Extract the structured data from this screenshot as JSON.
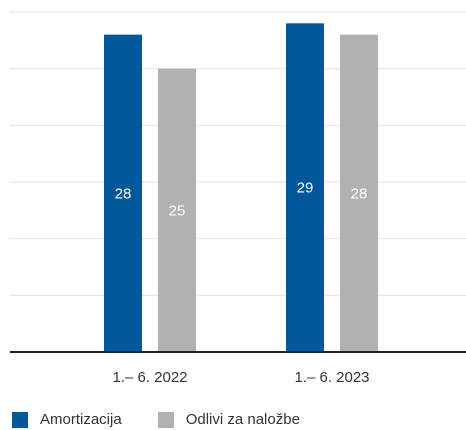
{
  "chart_data": {
    "type": "bar",
    "categories": [
      "1.– 6. 2022",
      "1.– 6. 2023"
    ],
    "series": [
      {
        "name": "Amortizacija",
        "values": [
          28,
          29
        ],
        "color": "#00579a"
      },
      {
        "name": "Odlivi za naložbe",
        "values": [
          25,
          28
        ],
        "color": "#b1b1b1"
      }
    ],
    "ylim": [
      0,
      30
    ],
    "grid": true,
    "legend": "bottom-left"
  }
}
